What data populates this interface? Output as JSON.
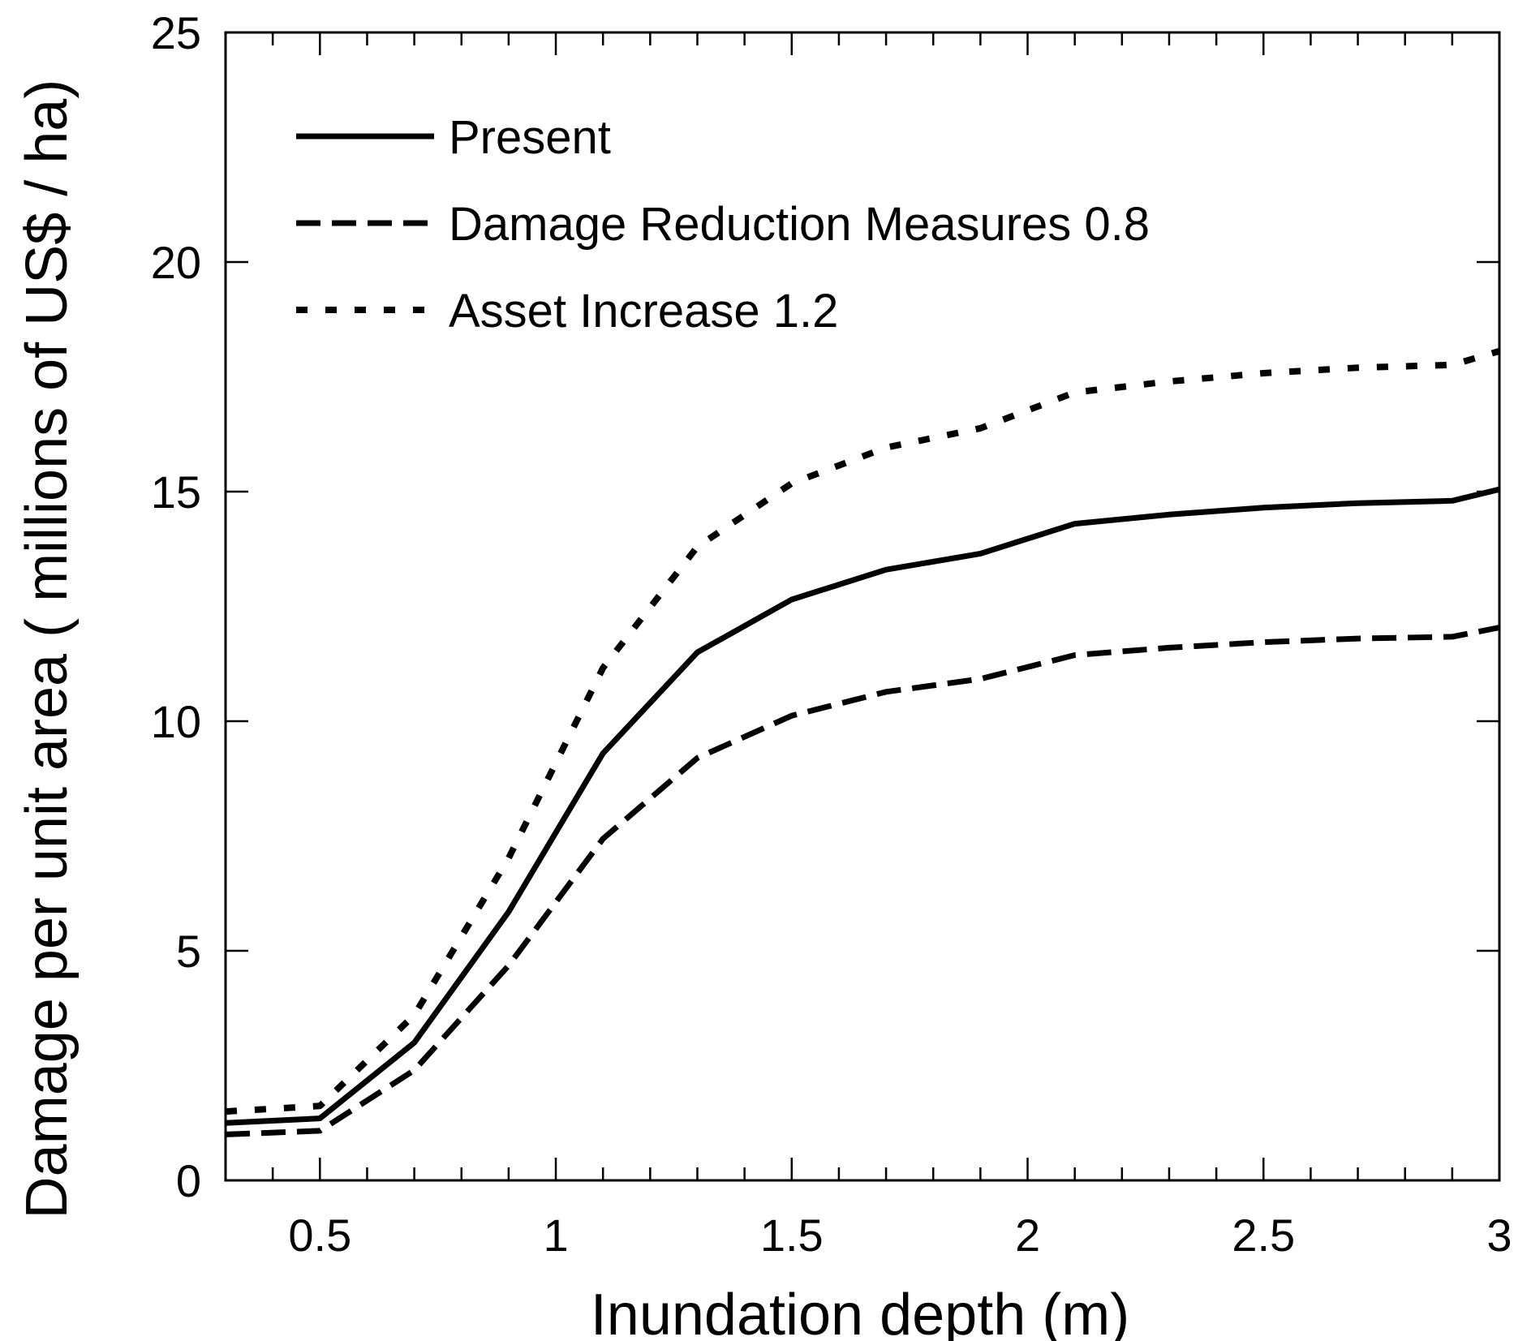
{
  "chart_data": {
    "type": "line",
    "title": "",
    "xlabel": "Inundation depth (m)",
    "ylabel": "Damage per unit area ( millions of US$ / ha)",
    "xlim": [
      0.3,
      3.0
    ],
    "ylim": [
      0,
      25
    ],
    "xticks": [
      0.5,
      1.0,
      1.5,
      2.0,
      2.5,
      3.0
    ],
    "xtick_labels": [
      "0.5",
      "1",
      "1.5",
      "2",
      "2.5",
      "3"
    ],
    "yticks": [
      0,
      5,
      10,
      15,
      20,
      25
    ],
    "ytick_labels": [
      "0",
      "5",
      "10",
      "15",
      "20",
      "25"
    ],
    "x_minor_step": 0.1,
    "grid": false,
    "legend_position": "top-left",
    "x": [
      0.3,
      0.5,
      0.7,
      0.9,
      1.1,
      1.3,
      1.5,
      1.7,
      1.9,
      2.1,
      2.3,
      2.5,
      2.7,
      2.9,
      3.0
    ],
    "series": [
      {
        "name": "Present",
        "style": "solid",
        "values": [
          1.25,
          1.35,
          3.0,
          5.85,
          9.3,
          11.5,
          12.65,
          13.3,
          13.65,
          14.3,
          14.5,
          14.65,
          14.75,
          14.8,
          15.05
        ]
      },
      {
        "name": "Damage Reduction Measures 0.8",
        "style": "dashed",
        "values": [
          1.0,
          1.08,
          2.4,
          4.68,
          7.44,
          9.2,
          10.12,
          10.64,
          10.92,
          11.44,
          11.6,
          11.72,
          11.8,
          11.84,
          12.04
        ]
      },
      {
        "name": "Asset Increase 1.2",
        "style": "dotted",
        "values": [
          1.5,
          1.62,
          3.6,
          7.02,
          11.16,
          13.8,
          15.18,
          15.96,
          16.38,
          17.16,
          17.4,
          17.58,
          17.7,
          17.76,
          18.06
        ]
      }
    ]
  },
  "colors": {
    "line": "#000000",
    "background": "#ffffff"
  }
}
